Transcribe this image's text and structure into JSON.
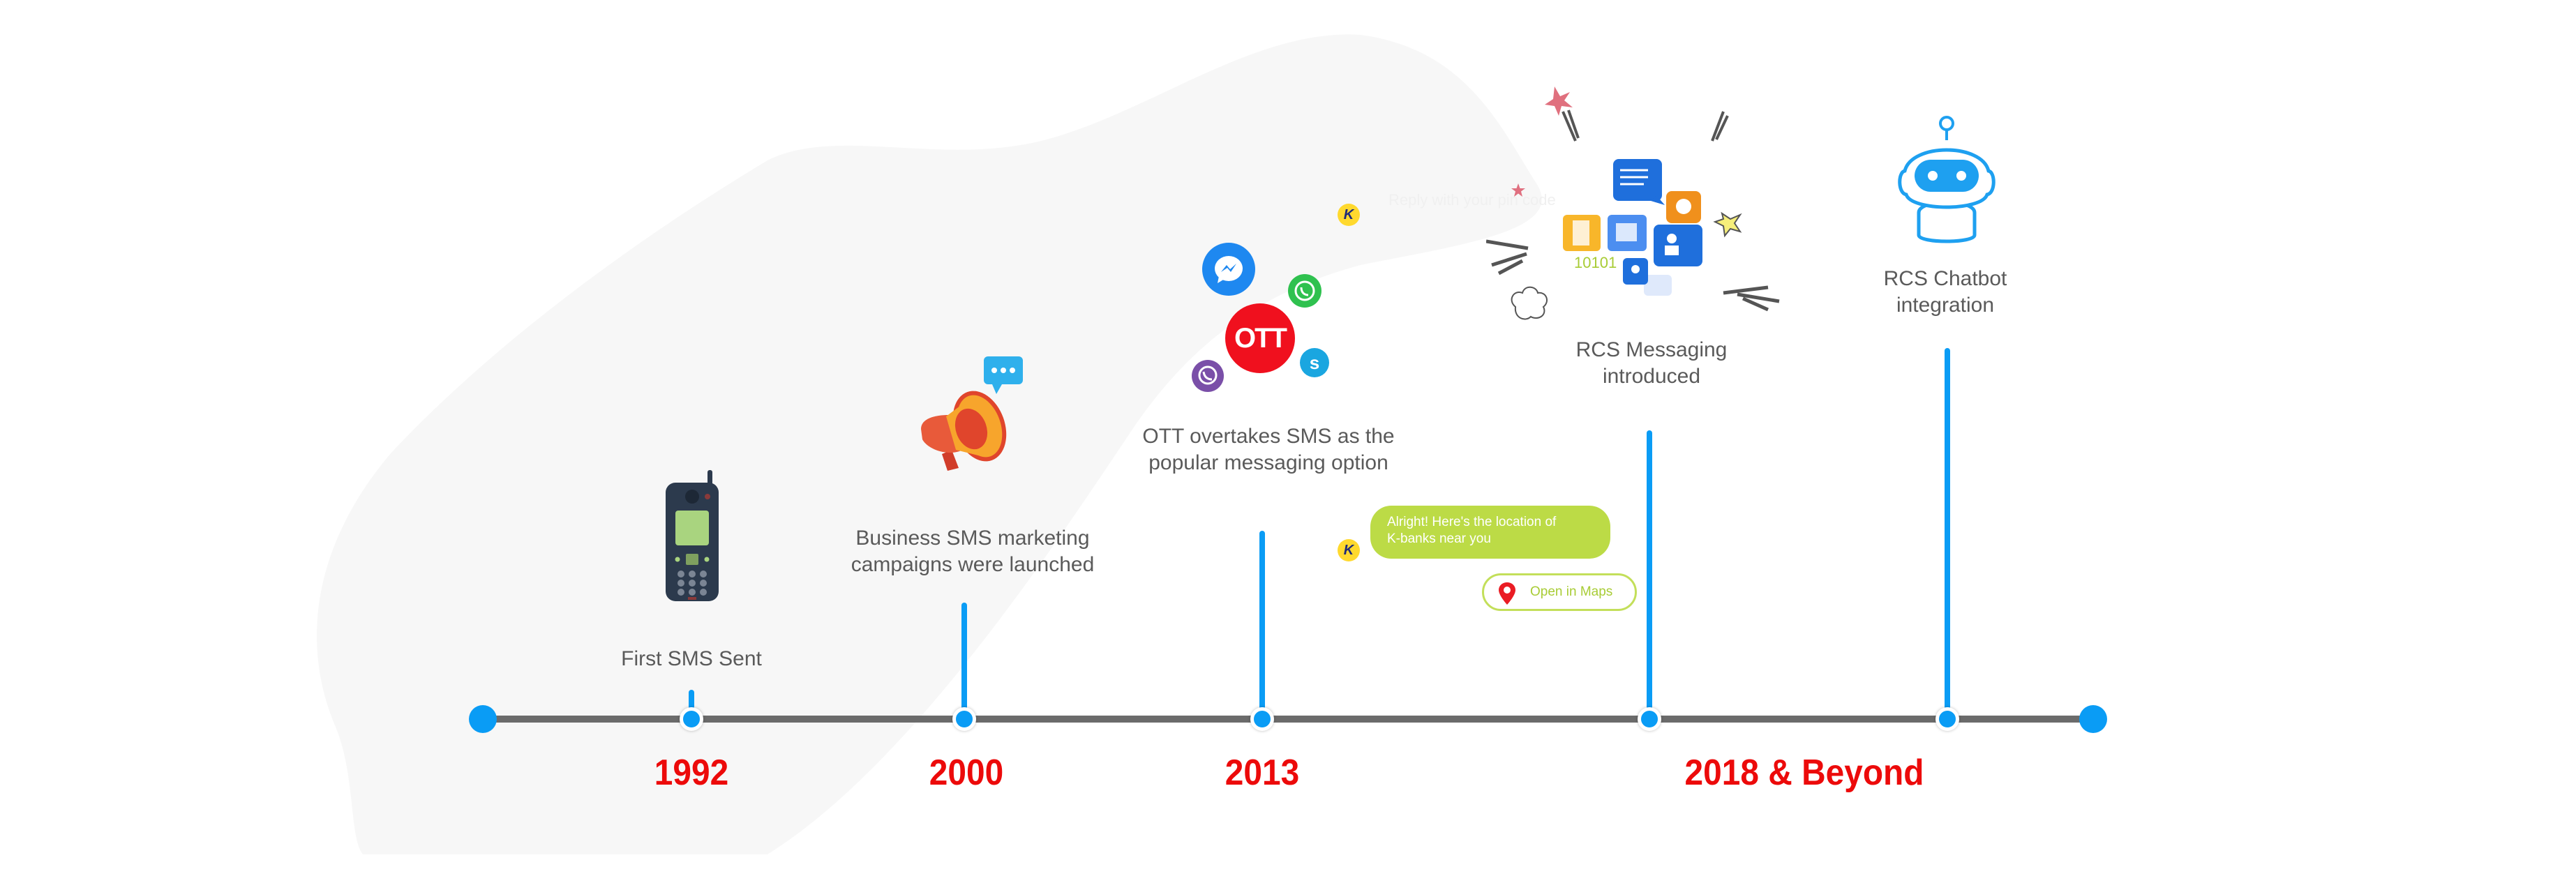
{
  "timeline": {
    "axis_color": "#6b6b6b",
    "accent_color": "#0a9cf5",
    "year_color": "#ec0a0a",
    "milestones": [
      {
        "year": "1992",
        "label": "First SMS Sent",
        "icon": "retro-mobile-phone-icon"
      },
      {
        "year": "2000",
        "label_line1": "Business SMS marketing",
        "label_line2": "campaigns were launched",
        "icon": "megaphone-icon"
      },
      {
        "year": "2013",
        "label_line1": "OTT overtakes SMS as the",
        "label_line2": "popular messaging option",
        "icon": "ott-apps-cluster-icon"
      },
      {
        "label_line1": "RCS Messaging",
        "label_line2": "introduced",
        "icon": "rcs-rich-messages-icon"
      },
      {
        "label_line1": "RCS Chatbot",
        "label_line2": "integration",
        "icon": "robot-icon"
      }
    ],
    "shared_year": "2018 & Beyond"
  },
  "ott_cluster": {
    "center_text": "OTT"
  },
  "chat_demo": {
    "faint_prompt": "Reply with your pin code",
    "brand_initial": "K",
    "bubble_text_line1": "Alright! Here's the location of",
    "bubble_text_line2": "K-banks near you",
    "maps_button": "Open in Maps"
  },
  "rcs_cluster": {
    "binary_text": "10101"
  }
}
